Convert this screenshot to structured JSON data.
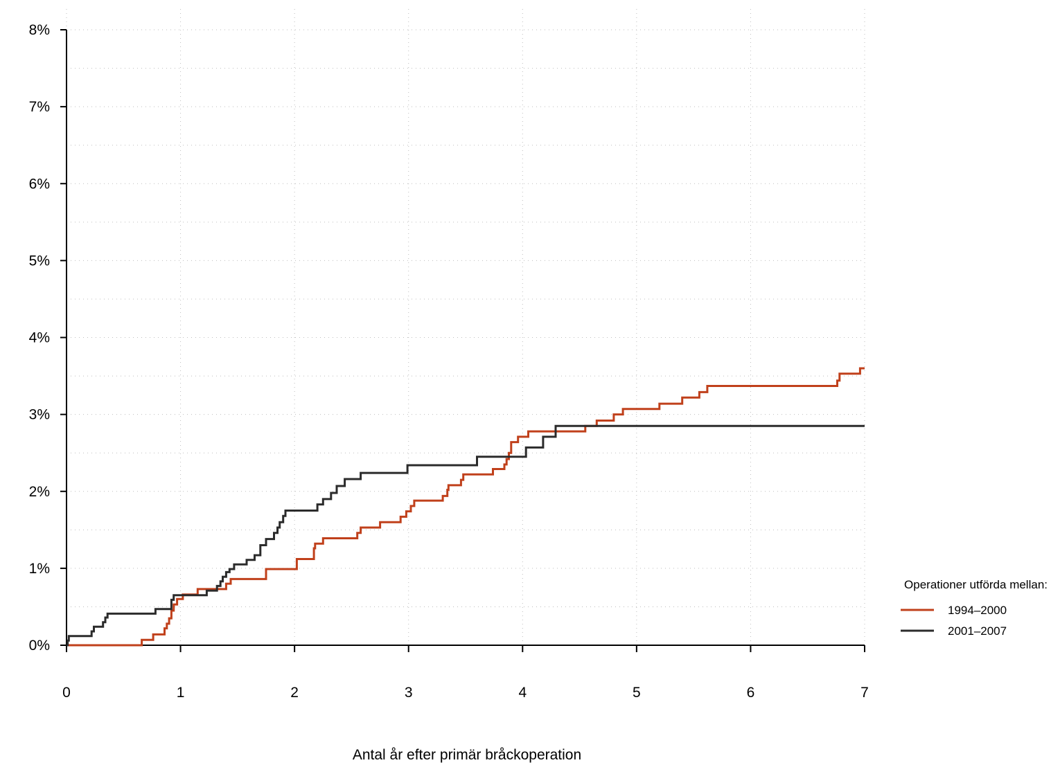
{
  "chart_data": {
    "type": "line",
    "step": true,
    "title": "",
    "xlabel": "Antal år efter primär bråckoperation",
    "ylabel": "",
    "xlim": [
      0,
      7
    ],
    "ylim": [
      0,
      8
    ],
    "xticks": [
      0,
      1,
      2,
      3,
      4,
      5,
      6,
      7
    ],
    "yticks": [
      0,
      1,
      2,
      3,
      4,
      5,
      6,
      7,
      8
    ],
    "xtick_labels": [
      "0",
      "1",
      "2",
      "3",
      "4",
      "5",
      "6",
      "7"
    ],
    "ytick_labels": [
      "0%",
      "1%",
      "2%",
      "3%",
      "4%",
      "5%",
      "6%",
      "7%",
      "8%"
    ],
    "grid": true,
    "grid_style": "dotted",
    "legend": {
      "title": "Operationer utförda mellan:",
      "position": "right"
    },
    "series": [
      {
        "name": "1994–2000",
        "color": "#c0401b",
        "x": [
          0,
          0.66,
          0.76,
          0.86,
          0.88,
          0.9,
          0.92,
          0.94,
          0.97,
          1.02,
          1.05,
          1.15,
          1.22,
          1.4,
          1.44,
          1.75,
          2.02,
          2.17,
          2.18,
          2.25,
          2.55,
          2.58,
          2.75,
          2.93,
          2.98,
          3.02,
          3.05,
          3.3,
          3.34,
          3.35,
          3.46,
          3.48,
          3.74,
          3.84,
          3.86,
          3.88,
          3.9,
          3.96,
          4.05,
          4.55,
          4.65,
          4.8,
          4.88,
          5.2,
          5.4,
          5.55,
          5.62,
          6.76,
          6.78,
          6.96,
          7.0
        ],
        "y": [
          0,
          0.07,
          0.14,
          0.22,
          0.28,
          0.35,
          0.45,
          0.53,
          0.6,
          0.66,
          0.66,
          0.73,
          0.73,
          0.8,
          0.86,
          0.99,
          1.12,
          1.26,
          1.32,
          1.39,
          1.46,
          1.53,
          1.6,
          1.67,
          1.74,
          1.81,
          1.88,
          1.94,
          2.02,
          2.08,
          2.15,
          2.22,
          2.29,
          2.35,
          2.42,
          2.5,
          2.64,
          2.71,
          2.78,
          2.85,
          2.92,
          3.0,
          3.07,
          3.14,
          3.22,
          3.29,
          3.37,
          3.44,
          3.53,
          3.6,
          3.6
        ]
      },
      {
        "name": "2001–2007",
        "color": "#2b2b2b",
        "x": [
          0,
          0.01,
          0.02,
          0.22,
          0.24,
          0.32,
          0.34,
          0.36,
          0.78,
          0.92,
          0.94,
          1.23,
          1.32,
          1.35,
          1.37,
          1.4,
          1.43,
          1.47,
          1.58,
          1.65,
          1.7,
          1.75,
          1.82,
          1.85,
          1.87,
          1.9,
          1.92,
          1.95,
          2.2,
          2.25,
          2.32,
          2.37,
          2.44,
          2.58,
          2.99,
          3.6,
          4.03,
          4.18,
          4.29,
          7.0
        ],
        "y": [
          0,
          0.06,
          0.12,
          0.18,
          0.24,
          0.3,
          0.36,
          0.41,
          0.47,
          0.59,
          0.65,
          0.71,
          0.77,
          0.83,
          0.89,
          0.95,
          0.99,
          1.05,
          1.11,
          1.17,
          1.3,
          1.38,
          1.46,
          1.53,
          1.6,
          1.68,
          1.75,
          1.75,
          1.83,
          1.9,
          1.98,
          2.07,
          2.16,
          2.24,
          2.34,
          2.45,
          2.57,
          2.71,
          2.85,
          2.85
        ]
      }
    ]
  }
}
